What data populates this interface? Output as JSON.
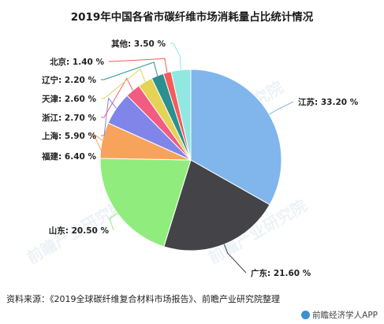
{
  "title": "2019年中国各省市碳纤维市场消耗量占比统计情况",
  "source": "资料来源：《2019全球碳纤维复合材料市场报告》、前瞻产业研究院整理",
  "brand": "前瞻经济学人APP",
  "watermark": "前瞻产业研究院",
  "chart_data": {
    "type": "pie",
    "title": "2019年中国各省市碳纤维市场消耗量占比统计情况",
    "unit": "%",
    "slices": [
      {
        "name": "江苏",
        "value": 33.2,
        "label": "江苏: 33.20 %",
        "color": "#80b6ec"
      },
      {
        "name": "广东",
        "value": 21.6,
        "label": "广东: 21.60 %",
        "color": "#434348"
      },
      {
        "name": "山东",
        "value": 20.5,
        "label": "山东: 20.50 %",
        "color": "#90ed7d"
      },
      {
        "name": "福建",
        "value": 6.4,
        "label": "福建: 6.40 %",
        "color": "#f7a35c"
      },
      {
        "name": "上海",
        "value": 5.9,
        "label": "上海: 5.90 %",
        "color": "#8085e9"
      },
      {
        "name": "浙江",
        "value": 2.7,
        "label": "浙江: 2.70 %",
        "color": "#f15c80"
      },
      {
        "name": "天津",
        "value": 2.6,
        "label": "天津: 2.60 %",
        "color": "#e4d354"
      },
      {
        "name": "辽宁",
        "value": 2.2,
        "label": "辽宁: 2.20 %",
        "color": "#2b908f"
      },
      {
        "name": "北京",
        "value": 1.4,
        "label": "北京: 1.40 %",
        "color": "#f45b5b"
      },
      {
        "name": "其他",
        "value": 3.5,
        "label": "其他: 3.50 %",
        "color": "#91e8e1"
      }
    ]
  }
}
